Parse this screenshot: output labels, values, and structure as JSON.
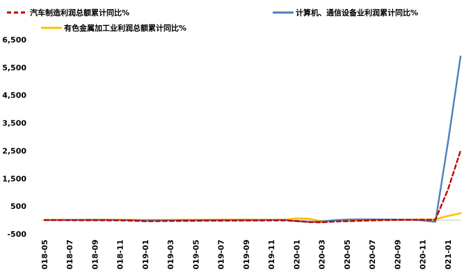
{
  "chart_data": {
    "type": "line",
    "title": "",
    "xlabel": "",
    "ylabel": "",
    "ylim": [
      -500,
      6500
    ],
    "yticks": [
      -500,
      500,
      1500,
      2500,
      3500,
      4500,
      5500,
      6500
    ],
    "ytick_labels": [
      "-500",
      "500",
      "1,500",
      "2,500",
      "3,500",
      "4,500",
      "5,500",
      "6,500"
    ],
    "grid": false,
    "legend_position": "top",
    "x": [
      "2018-05",
      "2018-06",
      "2018-07",
      "2018-08",
      "2018-09",
      "2018-10",
      "2018-11",
      "2018-12",
      "2019-01",
      "2019-02",
      "2019-03",
      "2019-04",
      "2019-05",
      "2019-06",
      "2019-07",
      "2019-08",
      "2019-09",
      "2019-10",
      "2019-11",
      "2019-12",
      "2020-01",
      "2020-02",
      "2020-03",
      "2020-04",
      "2020-05",
      "2020-06",
      "2020-07",
      "2020-08",
      "2020-09",
      "2020-10",
      "2020-11",
      "2020-12",
      "2021-01",
      "2021-02"
    ],
    "x_tick_labels": [
      "2018-05",
      "2018-07",
      "2018-09",
      "2018-11",
      "2019-01",
      "2019-03",
      "2019-05",
      "2019-07",
      "2019-09",
      "2019-11",
      "2020-01",
      "2020-03",
      "2020-05",
      "2020-07",
      "2020-09",
      "2020-11",
      "2021-01"
    ],
    "series": [
      {
        "name": "汽车制造利润总额累计同比%",
        "color": "#c00000",
        "dash": true,
        "values": [
          2,
          0,
          -3,
          -5,
          -6,
          -7,
          -10,
          -20,
          -40,
          -35,
          -30,
          -28,
          -25,
          -22,
          -20,
          -18,
          -17,
          -15,
          -12,
          -10,
          -30,
          -70,
          -80,
          -50,
          -40,
          -25,
          -10,
          0,
          5,
          10,
          12,
          15,
          1100,
          2500
        ]
      },
      {
        "name": "计算机、通信设备业利润累计同比%",
        "color": "#4a7ebb",
        "dash": false,
        "values": [
          5,
          5,
          8,
          10,
          10,
          8,
          5,
          2,
          -10,
          -8,
          -5,
          -2,
          0,
          2,
          3,
          4,
          5,
          5,
          6,
          8,
          -40,
          -60,
          -50,
          0,
          20,
          30,
          28,
          25,
          20,
          18,
          -10,
          -60,
          2800,
          5900
        ]
      },
      {
        "name": "有色金属加工业利润总额累计同比%",
        "color": "#ffc000",
        "dash": false,
        "values": [
          10,
          12,
          15,
          15,
          18,
          20,
          15,
          10,
          5,
          8,
          10,
          12,
          15,
          18,
          20,
          22,
          20,
          18,
          15,
          20,
          60,
          50,
          -40,
          -30,
          -10,
          0,
          5,
          10,
          15,
          20,
          25,
          30,
          150,
          250
        ]
      }
    ]
  }
}
